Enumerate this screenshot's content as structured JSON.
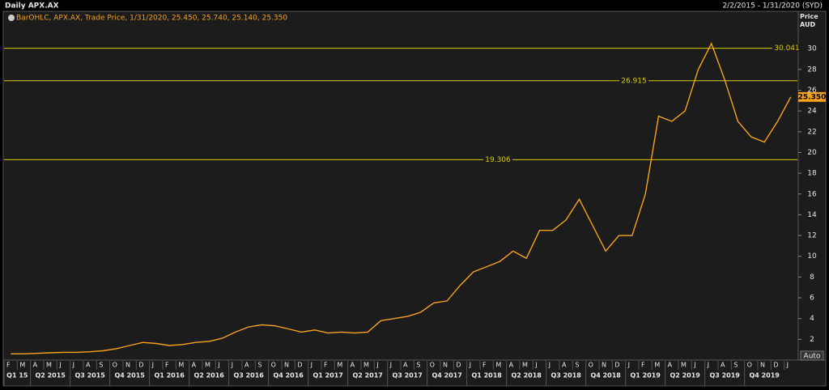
{
  "chart_data": {
    "type": "line",
    "title": "Daily APX.AX",
    "date_range": "2/2/2015 - 1/31/2020 (SYD)",
    "legend_text": "BarOHLC, APX.AX, Trade Price, 1/31/2020, 25.450, 25.740, 25.140, 25.350",
    "y_axis_label": "Price AUD",
    "auto_button": "Auto",
    "categories": [
      "F",
      "M",
      "A",
      "M",
      "J",
      "J",
      "A",
      "S",
      "O",
      "N",
      "D",
      "J",
      "F",
      "M",
      "A",
      "M",
      "J",
      "J",
      "A",
      "S",
      "O",
      "N",
      "D",
      "J",
      "F",
      "M",
      "A",
      "M",
      "J",
      "J",
      "A",
      "S",
      "O",
      "N",
      "D",
      "J",
      "F",
      "M",
      "A",
      "M",
      "J",
      "J",
      "A",
      "S",
      "O",
      "N",
      "D",
      "J",
      "F",
      "M",
      "A",
      "M",
      "J",
      "J",
      "A",
      "S",
      "O",
      "N",
      "D",
      "J"
    ],
    "quarters": [
      "Q1 15",
      "Q2 2015",
      "Q3 2015",
      "Q4 2015",
      "Q1 2016",
      "Q2 2016",
      "Q3 2016",
      "Q4 2016",
      "Q1 2017",
      "Q2 2017",
      "Q3 2017",
      "Q4 2017",
      "Q1 2018",
      "Q2 2018",
      "Q3 2018",
      "Q4 2018",
      "Q1 2019",
      "Q2 2019",
      "Q3 2019",
      "Q4 2019"
    ],
    "series": [
      {
        "name": "APX.AX",
        "color": "#f7a21b",
        "values": [
          0.6,
          0.6,
          0.65,
          0.7,
          0.75,
          0.75,
          0.8,
          0.9,
          1.1,
          1.4,
          1.7,
          1.6,
          1.4,
          1.5,
          1.7,
          1.8,
          2.1,
          2.7,
          3.2,
          3.4,
          3.3,
          3.0,
          2.7,
          2.9,
          2.6,
          2.7,
          2.6,
          2.7,
          3.8,
          4.0,
          4.2,
          4.6,
          5.5,
          5.7,
          7.2,
          8.5,
          9.0,
          9.5,
          10.5,
          9.8,
          12.5,
          12.5,
          13.5,
          15.5,
          13.0,
          10.5,
          12.0,
          12.0,
          16.0,
          23.5,
          23.0,
          24.0,
          28.0,
          30.5,
          27.0,
          23.0,
          21.5,
          21.0,
          23.0,
          25.35
        ]
      }
    ],
    "hlines": [
      30.041,
      26.915,
      19.306
    ],
    "hline_color": "#d8cc00",
    "last_price": {
      "value": 25.35,
      "label": "25.350"
    },
    "ylim": [
      0,
      33.6
    ],
    "yticks": [
      2,
      4,
      6,
      8,
      10,
      12,
      14,
      16,
      18,
      20,
      22,
      24,
      26,
      28,
      30
    ],
    "grid": false
  }
}
